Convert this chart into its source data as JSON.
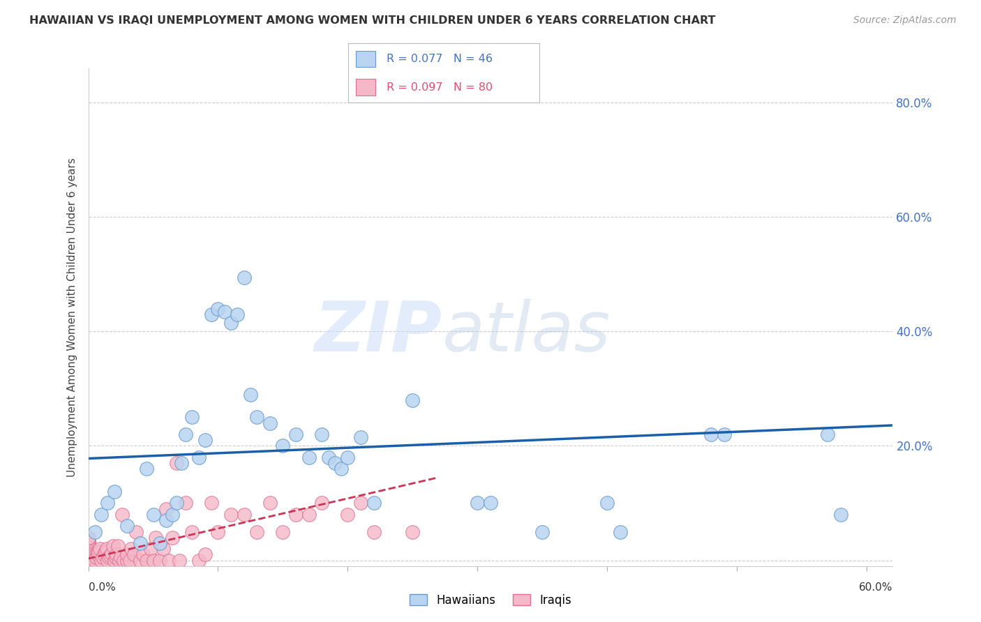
{
  "title": "HAWAIIAN VS IRAQI UNEMPLOYMENT AMONG WOMEN WITH CHILDREN UNDER 6 YEARS CORRELATION CHART",
  "source": "Source: ZipAtlas.com",
  "ylabel": "Unemployment Among Women with Children Under 6 years",
  "xlim": [
    0.0,
    0.62
  ],
  "ylim": [
    -0.01,
    0.86
  ],
  "background_color": "#ffffff",
  "grid_color": "#cccccc",
  "hawaiian_color": "#b8d4f0",
  "iraqi_color": "#f5b8c8",
  "hawaiian_edge": "#6699cc",
  "iraqi_edge": "#dd7090",
  "trend_hawaiian_color": "#1a5fa8",
  "trend_iraqi_color": "#cc3355",
  "hawaiian_label": "Hawaiians",
  "iraqi_label": "Iraqis",
  "yticks": [
    0.0,
    0.2,
    0.4,
    0.6,
    0.8
  ],
  "ytick_labels": [
    "20.0%",
    "40.0%",
    "60.0%",
    "80.0%"
  ],
  "hawaiian_trend_y0": 0.178,
  "hawaiian_trend_y1": 0.236,
  "iraqi_trend_y0": 0.003,
  "iraqi_trend_y1": 0.145,
  "iraqi_trend_x1": 0.27,
  "hawaiian_x": [
    0.005,
    0.01,
    0.015,
    0.02,
    0.03,
    0.04,
    0.045,
    0.05,
    0.055,
    0.06,
    0.065,
    0.068,
    0.072,
    0.075,
    0.08,
    0.085,
    0.09,
    0.095,
    0.1,
    0.105,
    0.11,
    0.115,
    0.12,
    0.125,
    0.13,
    0.14,
    0.15,
    0.16,
    0.17,
    0.18,
    0.185,
    0.19,
    0.195,
    0.2,
    0.21,
    0.22,
    0.25,
    0.3,
    0.31,
    0.35,
    0.4,
    0.41,
    0.48,
    0.49,
    0.57,
    0.58
  ],
  "hawaiian_y": [
    0.05,
    0.08,
    0.1,
    0.12,
    0.06,
    0.03,
    0.16,
    0.08,
    0.03,
    0.07,
    0.08,
    0.1,
    0.17,
    0.22,
    0.25,
    0.18,
    0.21,
    0.43,
    0.44,
    0.435,
    0.415,
    0.43,
    0.495,
    0.29,
    0.25,
    0.24,
    0.2,
    0.22,
    0.18,
    0.22,
    0.18,
    0.17,
    0.16,
    0.18,
    0.215,
    0.1,
    0.28,
    0.1,
    0.1,
    0.05,
    0.1,
    0.05,
    0.22,
    0.22,
    0.22,
    0.08
  ],
  "iraqi_x": [
    0.0,
    0.0,
    0.0,
    0.0,
    0.0,
    0.0,
    0.0,
    0.0,
    0.0,
    0.0,
    0.0,
    0.0,
    0.0,
    0.0,
    0.0,
    0.0,
    0.0,
    0.0,
    0.0,
    0.0,
    0.005,
    0.006,
    0.007,
    0.008,
    0.009,
    0.01,
    0.011,
    0.012,
    0.013,
    0.014,
    0.015,
    0.016,
    0.017,
    0.018,
    0.019,
    0.02,
    0.021,
    0.022,
    0.023,
    0.024,
    0.025,
    0.026,
    0.027,
    0.03,
    0.03,
    0.032,
    0.033,
    0.035,
    0.037,
    0.04,
    0.042,
    0.045,
    0.048,
    0.05,
    0.052,
    0.055,
    0.058,
    0.06,
    0.062,
    0.065,
    0.068,
    0.07,
    0.075,
    0.08,
    0.085,
    0.09,
    0.095,
    0.1,
    0.11,
    0.12,
    0.13,
    0.14,
    0.15,
    0.16,
    0.17,
    0.18,
    0.2,
    0.21,
    0.22,
    0.25
  ],
  "iraqi_y": [
    0.0,
    0.0,
    0.0,
    0.0,
    0.0,
    0.005,
    0.008,
    0.01,
    0.012,
    0.015,
    0.018,
    0.02,
    0.022,
    0.025,
    0.028,
    0.03,
    0.032,
    0.035,
    0.038,
    0.04,
    0.0,
    0.005,
    0.01,
    0.015,
    0.02,
    0.0,
    0.005,
    0.01,
    0.015,
    0.02,
    0.0,
    0.005,
    0.008,
    0.012,
    0.025,
    0.0,
    0.005,
    0.01,
    0.025,
    0.0,
    0.005,
    0.08,
    0.0,
    0.0,
    0.01,
    0.0,
    0.02,
    0.01,
    0.05,
    0.0,
    0.01,
    0.0,
    0.02,
    0.0,
    0.04,
    0.0,
    0.02,
    0.09,
    0.0,
    0.04,
    0.17,
    0.0,
    0.1,
    0.05,
    0.0,
    0.01,
    0.1,
    0.05,
    0.08,
    0.08,
    0.05,
    0.1,
    0.05,
    0.08,
    0.08,
    0.1,
    0.08,
    0.1,
    0.05,
    0.05
  ]
}
